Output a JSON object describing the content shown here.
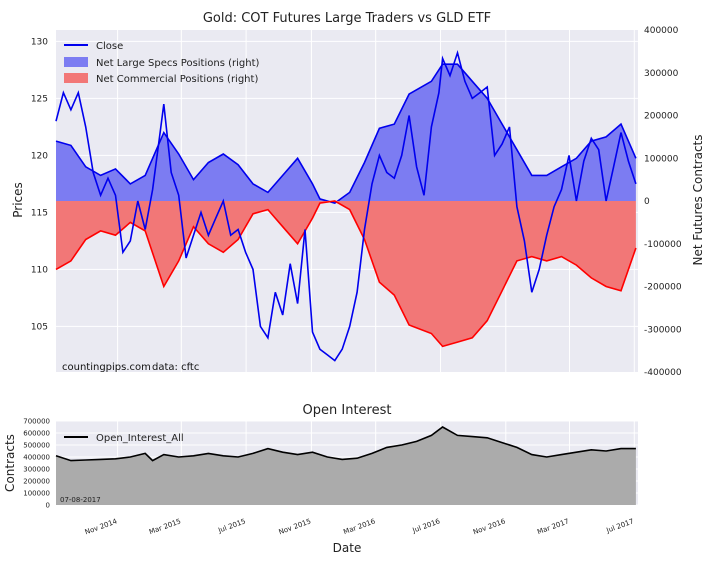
{
  "chart_data": [
    {
      "type": "line",
      "title": "Gold: COT Futures Large Traders vs GLD ETF",
      "xlabel": "",
      "ylabel": "Prices",
      "ylabel_right": "Net Futures Contracts",
      "x_range": [
        "2014-07-08",
        "2017-07-08"
      ],
      "ylim": [
        101,
        131
      ],
      "ylim_right": [
        -400000,
        400000
      ],
      "yticks": [
        "105",
        "110",
        "115",
        "120",
        "125",
        "130"
      ],
      "yticks_right": [
        "-400000",
        "-300000",
        "-200000",
        "-100000",
        "0",
        "100000",
        "200000",
        "300000",
        "400000"
      ],
      "legend_position": "top-left",
      "grid": true,
      "legend": {
        "close": "Close",
        "specs": "Net Large Specs Positions (right)",
        "commercial": "Net Commercial Positions (right)"
      },
      "colors": {
        "close": "#0000ee",
        "specs_fill": "#7c7cf2",
        "commercial_fill": "#f27777",
        "commercial_line": "#ff0000",
        "plot_bg": "#eaeaf2"
      },
      "annotations": {
        "source": "countingpips.com",
        "data": "data: cftc"
      },
      "series": [
        {
          "name": "Close",
          "axis": "left",
          "points": [
            [
              "2014-07-08",
              123
            ],
            [
              "2014-07-22",
              125.5
            ],
            [
              "2014-08-05",
              124
            ],
            [
              "2014-08-19",
              125.5
            ],
            [
              "2014-09-02",
              122.5
            ],
            [
              "2014-09-16",
              118.5
            ],
            [
              "2014-09-30",
              116.5
            ],
            [
              "2014-10-14",
              118
            ],
            [
              "2014-10-28",
              116.5
            ],
            [
              "2014-11-11",
              111.5
            ],
            [
              "2014-11-25",
              112.5
            ],
            [
              "2014-12-09",
              116
            ],
            [
              "2014-12-23",
              113.5
            ],
            [
              "2015-01-06",
              117
            ],
            [
              "2015-01-20",
              122
            ],
            [
              "2015-01-27",
              124.5
            ],
            [
              "2015-02-10",
              118.5
            ],
            [
              "2015-02-24",
              116.5
            ],
            [
              "2015-03-10",
              111
            ],
            [
              "2015-03-24",
              113
            ],
            [
              "2015-04-07",
              115
            ],
            [
              "2015-04-21",
              113
            ],
            [
              "2015-05-05",
              114.5
            ],
            [
              "2015-05-19",
              116
            ],
            [
              "2015-06-02",
              113
            ],
            [
              "2015-06-16",
              113.5
            ],
            [
              "2015-06-30",
              111.5
            ],
            [
              "2015-07-14",
              110
            ],
            [
              "2015-07-28",
              105
            ],
            [
              "2015-08-11",
              104
            ],
            [
              "2015-08-25",
              108
            ],
            [
              "2015-09-08",
              106
            ],
            [
              "2015-09-22",
              110.5
            ],
            [
              "2015-10-06",
              107
            ],
            [
              "2015-10-20",
              113.5
            ],
            [
              "2015-11-03",
              104.5
            ],
            [
              "2015-11-17",
              103
            ],
            [
              "2015-12-01",
              102.5
            ],
            [
              "2015-12-15",
              102
            ],
            [
              "2015-12-29",
              103
            ],
            [
              "2016-01-12",
              105
            ],
            [
              "2016-01-26",
              108
            ],
            [
              "2016-02-09",
              113.5
            ],
            [
              "2016-02-23",
              117.5
            ],
            [
              "2016-03-08",
              120
            ],
            [
              "2016-03-22",
              118.5
            ],
            [
              "2016-04-05",
              118
            ],
            [
              "2016-04-19",
              120
            ],
            [
              "2016-05-03",
              123.5
            ],
            [
              "2016-05-17",
              119
            ],
            [
              "2016-05-31",
              116.5
            ],
            [
              "2016-06-14",
              122.5
            ],
            [
              "2016-06-28",
              125.5
            ],
            [
              "2016-07-05",
              128.5
            ],
            [
              "2016-07-19",
              127
            ],
            [
              "2016-08-02",
              129
            ],
            [
              "2016-08-16",
              126.5
            ],
            [
              "2016-08-30",
              125
            ],
            [
              "2016-09-13",
              125.5
            ],
            [
              "2016-09-27",
              126
            ],
            [
              "2016-10-11",
              120
            ],
            [
              "2016-10-25",
              121
            ],
            [
              "2016-11-08",
              122.5
            ],
            [
              "2016-11-22",
              115.5
            ],
            [
              "2016-12-06",
              112.5
            ],
            [
              "2016-12-20",
              108
            ],
            [
              "2017-01-03",
              110
            ],
            [
              "2017-01-17",
              113
            ],
            [
              "2017-01-31",
              115.5
            ],
            [
              "2017-02-14",
              117
            ],
            [
              "2017-02-28",
              120
            ],
            [
              "2017-03-14",
              116
            ],
            [
              "2017-03-28",
              119.5
            ],
            [
              "2017-04-11",
              121.5
            ],
            [
              "2017-04-25",
              120.5
            ],
            [
              "2017-05-09",
              116
            ],
            [
              "2017-05-23",
              119
            ],
            [
              "2017-06-06",
              122
            ],
            [
              "2017-06-20",
              119.5
            ],
            [
              "2017-07-04",
              117.5
            ]
          ]
        },
        {
          "name": "Net Large Specs Positions (right)",
          "axis": "right",
          "points": [
            [
              "2014-07-08",
              140000
            ],
            [
              "2014-08-05",
              130000
            ],
            [
              "2014-09-02",
              80000
            ],
            [
              "2014-09-30",
              60000
            ],
            [
              "2014-10-28",
              75000
            ],
            [
              "2014-11-25",
              40000
            ],
            [
              "2014-12-23",
              60000
            ],
            [
              "2015-01-27",
              160000
            ],
            [
              "2015-02-24",
              110000
            ],
            [
              "2015-03-24",
              50000
            ],
            [
              "2015-04-21",
              90000
            ],
            [
              "2015-05-19",
              110000
            ],
            [
              "2015-06-16",
              85000
            ],
            [
              "2015-07-14",
              40000
            ],
            [
              "2015-08-11",
              20000
            ],
            [
              "2015-09-08",
              60000
            ],
            [
              "2015-10-06",
              100000
            ],
            [
              "2015-11-03",
              40000
            ],
            [
              "2015-11-17",
              5000
            ],
            [
              "2015-12-15",
              -5000
            ],
            [
              "2016-01-12",
              20000
            ],
            [
              "2016-02-09",
              90000
            ],
            [
              "2016-03-08",
              170000
            ],
            [
              "2016-04-05",
              180000
            ],
            [
              "2016-05-03",
              250000
            ],
            [
              "2016-06-14",
              280000
            ],
            [
              "2016-07-05",
              320000
            ],
            [
              "2016-08-02",
              320000
            ],
            [
              "2016-08-30",
              280000
            ],
            [
              "2016-09-27",
              240000
            ],
            [
              "2016-10-25",
              180000
            ],
            [
              "2016-11-22",
              120000
            ],
            [
              "2016-12-20",
              60000
            ],
            [
              "2017-01-17",
              60000
            ],
            [
              "2017-02-14",
              80000
            ],
            [
              "2017-03-14",
              100000
            ],
            [
              "2017-04-11",
              140000
            ],
            [
              "2017-05-09",
              150000
            ],
            [
              "2017-06-06",
              180000
            ],
            [
              "2017-07-04",
              100000
            ]
          ]
        },
        {
          "name": "Net Commercial Positions (right)",
          "axis": "right",
          "points": [
            [
              "2014-07-08",
              -160000
            ],
            [
              "2014-08-05",
              -140000
            ],
            [
              "2014-09-02",
              -90000
            ],
            [
              "2014-09-30",
              -70000
            ],
            [
              "2014-10-28",
              -80000
            ],
            [
              "2014-11-25",
              -50000
            ],
            [
              "2014-12-23",
              -70000
            ],
            [
              "2015-01-27",
              -200000
            ],
            [
              "2015-02-24",
              -140000
            ],
            [
              "2015-03-24",
              -60000
            ],
            [
              "2015-04-21",
              -100000
            ],
            [
              "2015-05-19",
              -120000
            ],
            [
              "2015-06-16",
              -90000
            ],
            [
              "2015-07-14",
              -30000
            ],
            [
              "2015-08-11",
              -20000
            ],
            [
              "2015-09-08",
              -60000
            ],
            [
              "2015-10-06",
              -100000
            ],
            [
              "2015-11-03",
              -40000
            ],
            [
              "2015-11-17",
              -5000
            ],
            [
              "2015-12-15",
              0
            ],
            [
              "2016-01-12",
              -20000
            ],
            [
              "2016-02-09",
              -90000
            ],
            [
              "2016-03-08",
              -190000
            ],
            [
              "2016-04-05",
              -220000
            ],
            [
              "2016-05-03",
              -290000
            ],
            [
              "2016-06-14",
              -310000
            ],
            [
              "2016-07-05",
              -340000
            ],
            [
              "2016-08-02",
              -330000
            ],
            [
              "2016-08-30",
              -320000
            ],
            [
              "2016-09-27",
              -280000
            ],
            [
              "2016-10-25",
              -210000
            ],
            [
              "2016-11-22",
              -140000
            ],
            [
              "2016-12-20",
              -130000
            ],
            [
              "2017-01-17",
              -140000
            ],
            [
              "2017-02-14",
              -130000
            ],
            [
              "2017-03-14",
              -150000
            ],
            [
              "2017-04-11",
              -180000
            ],
            [
              "2017-05-09",
              -200000
            ],
            [
              "2017-06-06",
              -210000
            ],
            [
              "2017-07-04",
              -110000
            ]
          ]
        }
      ]
    },
    {
      "type": "area",
      "title": "Open Interest",
      "xlabel": "Date",
      "ylabel": "Contracts",
      "x_range": [
        "2014-07-08",
        "2017-07-08"
      ],
      "ylim": [
        0,
        700000
      ],
      "yticks": [
        "0",
        "100000",
        "200000",
        "300000",
        "400000",
        "500000",
        "600000",
        "700000"
      ],
      "xticks": [
        "Nov 2014",
        "Mar 2015",
        "Jul 2015",
        "Nov 2015",
        "Mar 2016",
        "Jul 2016",
        "Nov 2016",
        "Mar 2017",
        "Jul 2017"
      ],
      "legend_position": "top-left",
      "grid": true,
      "date_stamp": "07-08-2017",
      "colors": {
        "line": "#000000",
        "fill": "#ababab",
        "plot_bg": "#eaeaf2"
      },
      "series": [
        {
          "name": "Open_Interest_All",
          "points": [
            [
              "2014-07-08",
              410000
            ],
            [
              "2014-08-05",
              370000
            ],
            [
              "2014-09-02",
              375000
            ],
            [
              "2014-09-30",
              380000
            ],
            [
              "2014-10-28",
              385000
            ],
            [
              "2014-11-25",
              400000
            ],
            [
              "2014-12-23",
              430000
            ],
            [
              "2015-01-06",
              370000
            ],
            [
              "2015-01-27",
              420000
            ],
            [
              "2015-02-24",
              400000
            ],
            [
              "2015-03-24",
              410000
            ],
            [
              "2015-04-21",
              430000
            ],
            [
              "2015-05-19",
              410000
            ],
            [
              "2015-06-16",
              400000
            ],
            [
              "2015-07-14",
              430000
            ],
            [
              "2015-08-11",
              470000
            ],
            [
              "2015-09-08",
              440000
            ],
            [
              "2015-10-06",
              420000
            ],
            [
              "2015-11-03",
              440000
            ],
            [
              "2015-12-01",
              400000
            ],
            [
              "2015-12-29",
              380000
            ],
            [
              "2016-01-26",
              390000
            ],
            [
              "2016-02-23",
              430000
            ],
            [
              "2016-03-22",
              480000
            ],
            [
              "2016-04-19",
              500000
            ],
            [
              "2016-05-17",
              530000
            ],
            [
              "2016-06-14",
              580000
            ],
            [
              "2016-07-05",
              650000
            ],
            [
              "2016-08-02",
              580000
            ],
            [
              "2016-08-30",
              570000
            ],
            [
              "2016-09-27",
              560000
            ],
            [
              "2016-10-25",
              520000
            ],
            [
              "2016-11-22",
              480000
            ],
            [
              "2016-12-20",
              420000
            ],
            [
              "2017-01-17",
              400000
            ],
            [
              "2017-02-14",
              420000
            ],
            [
              "2017-03-14",
              440000
            ],
            [
              "2017-04-11",
              460000
            ],
            [
              "2017-05-09",
              450000
            ],
            [
              "2017-06-06",
              470000
            ],
            [
              "2017-07-04",
              470000
            ]
          ]
        }
      ]
    }
  ]
}
